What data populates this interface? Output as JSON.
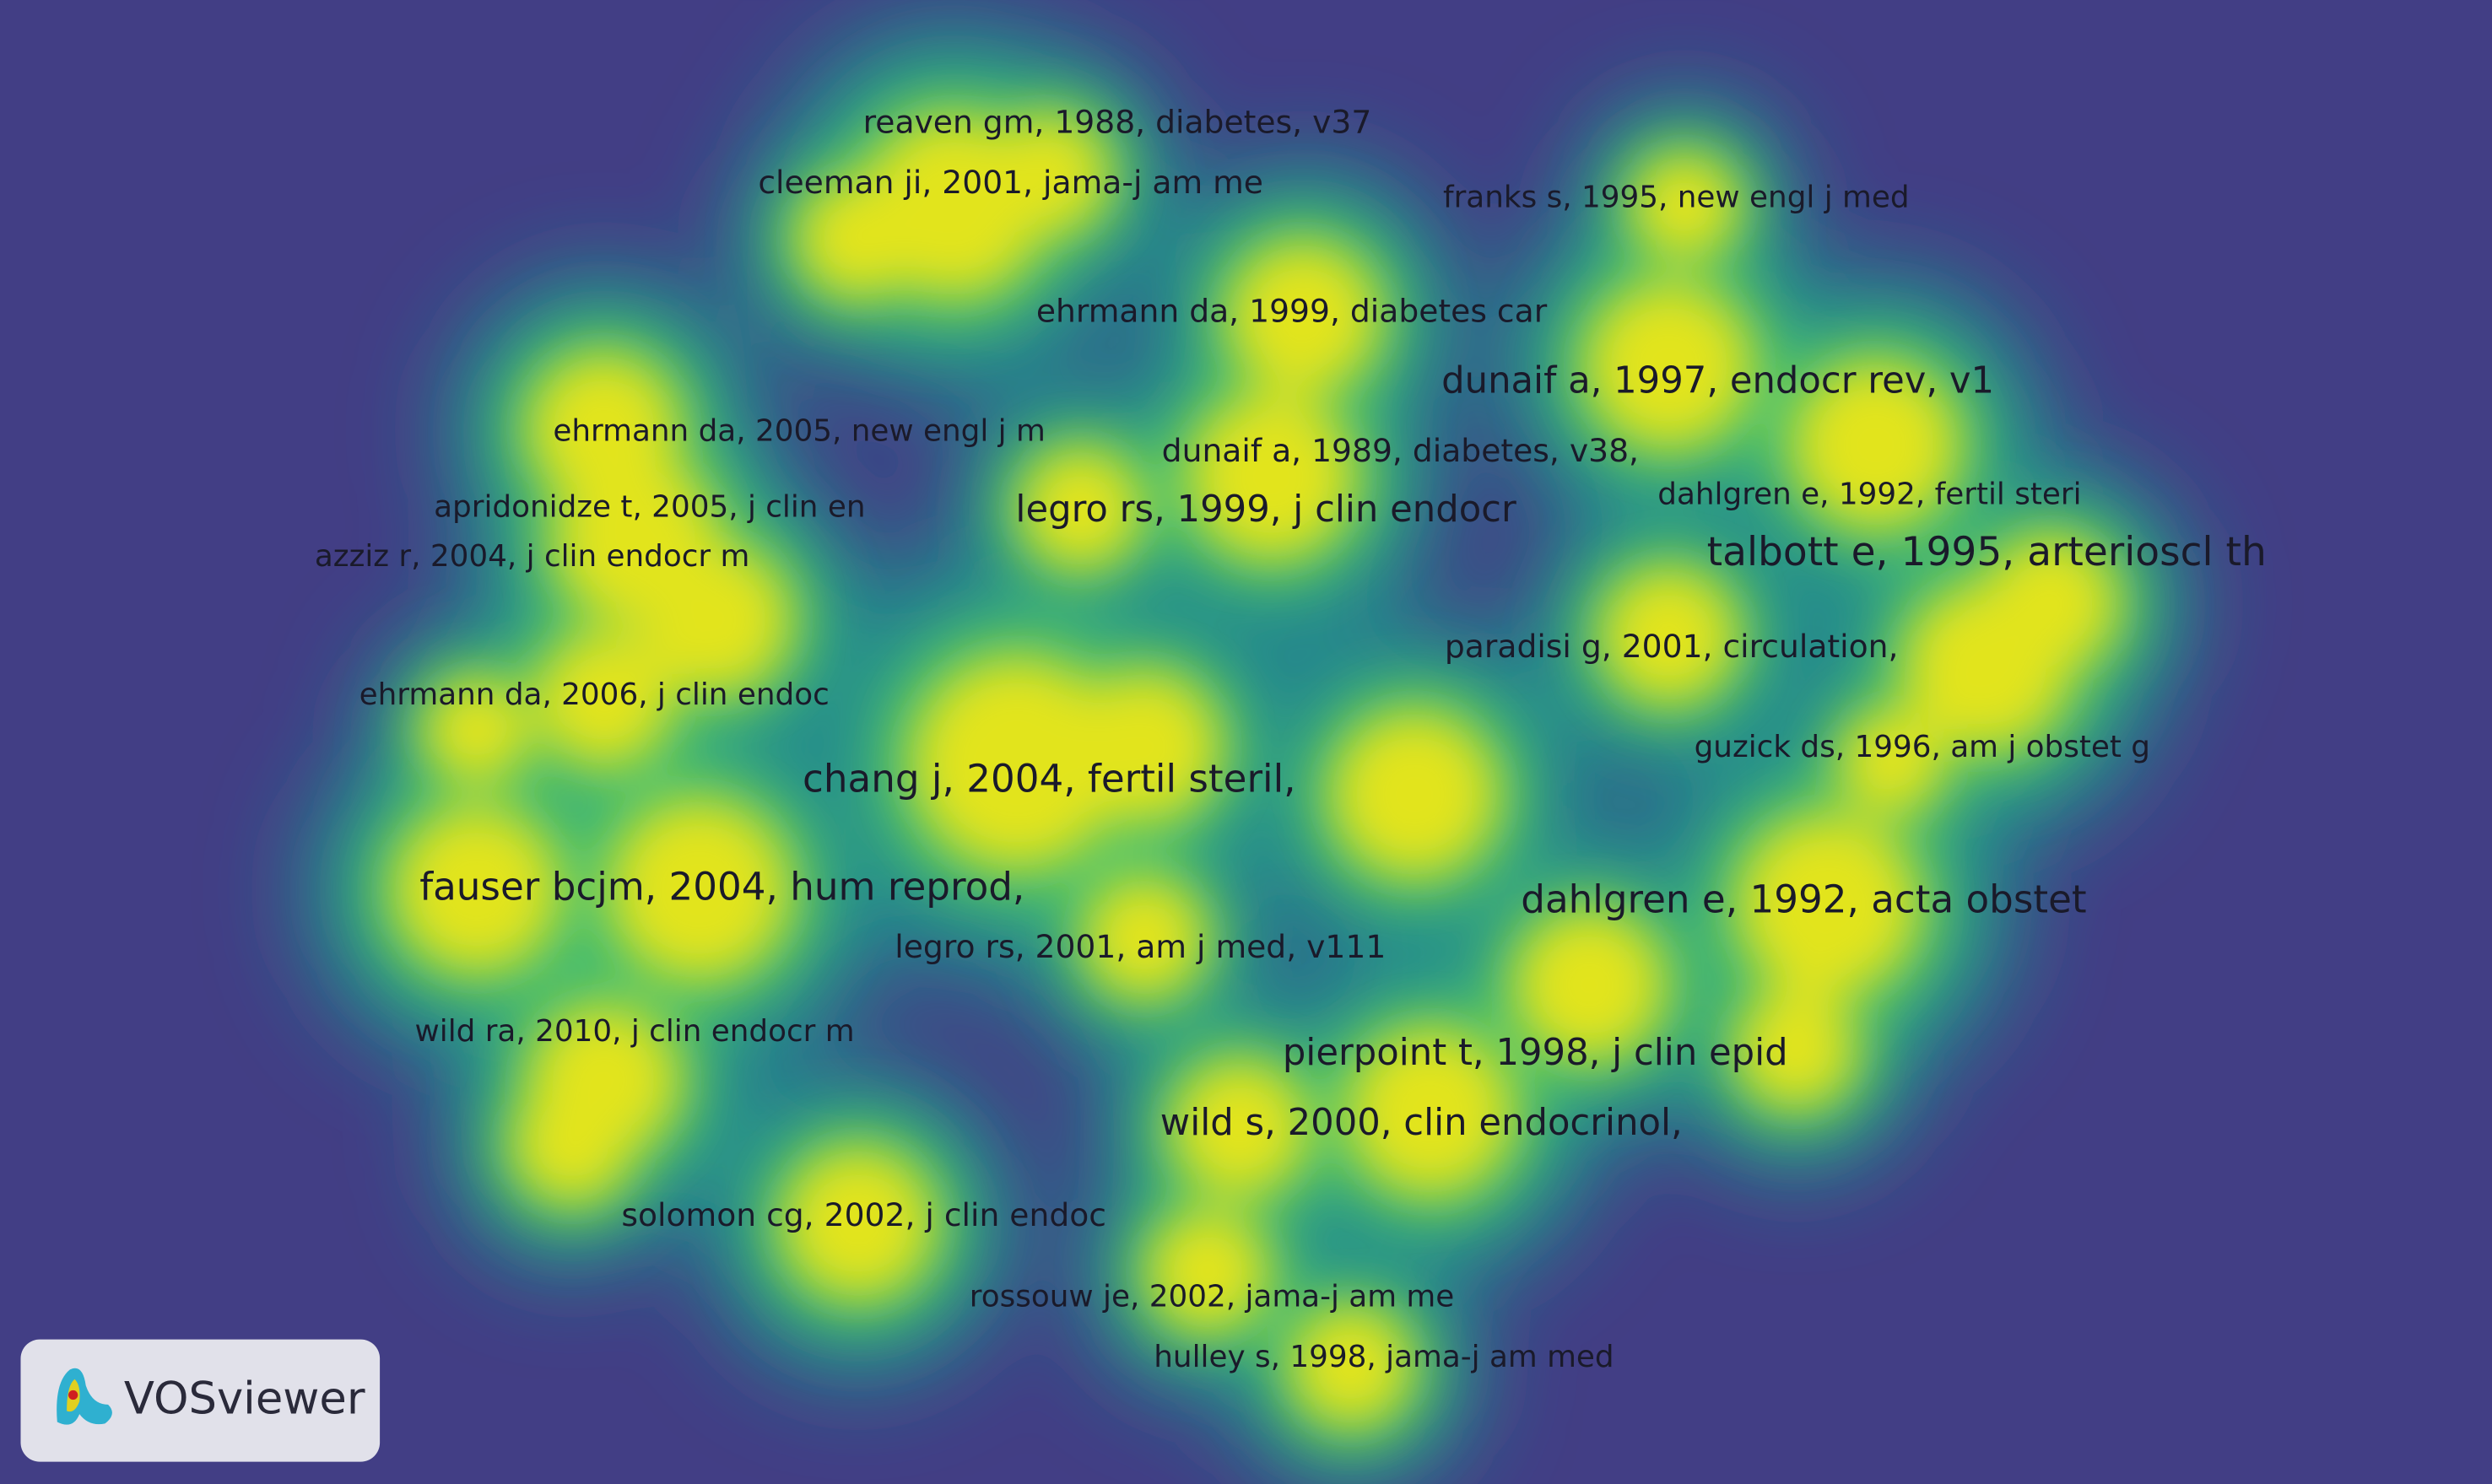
{
  "labels": [
    "reaven gm, 1988, diabetes, v37",
    "cleeman ji, 2001, jama-j am me",
    "franks s, 1995, new engl j med",
    "ehrmann da, 1999, diabetes car",
    "dunaif a, 1997, endocr rev, v1",
    "ehrmann da, 2005, new engl j m",
    "dunaif a, 1989, diabetes, v38,",
    "dahlgren e, 1992, fertil steri",
    "apridonidze t, 2005, j clin en",
    "legro rs, 1999, j clin endocr",
    "azziz r, 2004, j clin endocr m",
    "talbott e, 1995, arterioscl th",
    "paradisi g, 2001, circulation,",
    "ehrmann da, 2006, j clin endoc",
    "guzick ds, 1996, am j obstet g",
    "chang j, 2004, fertil steril,",
    "fauser bcjm, 2004, hum reprod,",
    "dahlgren e, 1992, acta obstet",
    "legro rs, 2001, am j med, v111",
    "wild ra, 2010, j clin endocr m",
    "pierpoint t, 1998, j clin epid",
    "wild s, 2000, clin endocrinol,",
    "solomon cg, 2002, j clin endoc",
    "rossouw je, 2002, jama-j am me",
    "hulley s, 1998, jama-j am med"
  ],
  "logo": "VOSviewer"
}
